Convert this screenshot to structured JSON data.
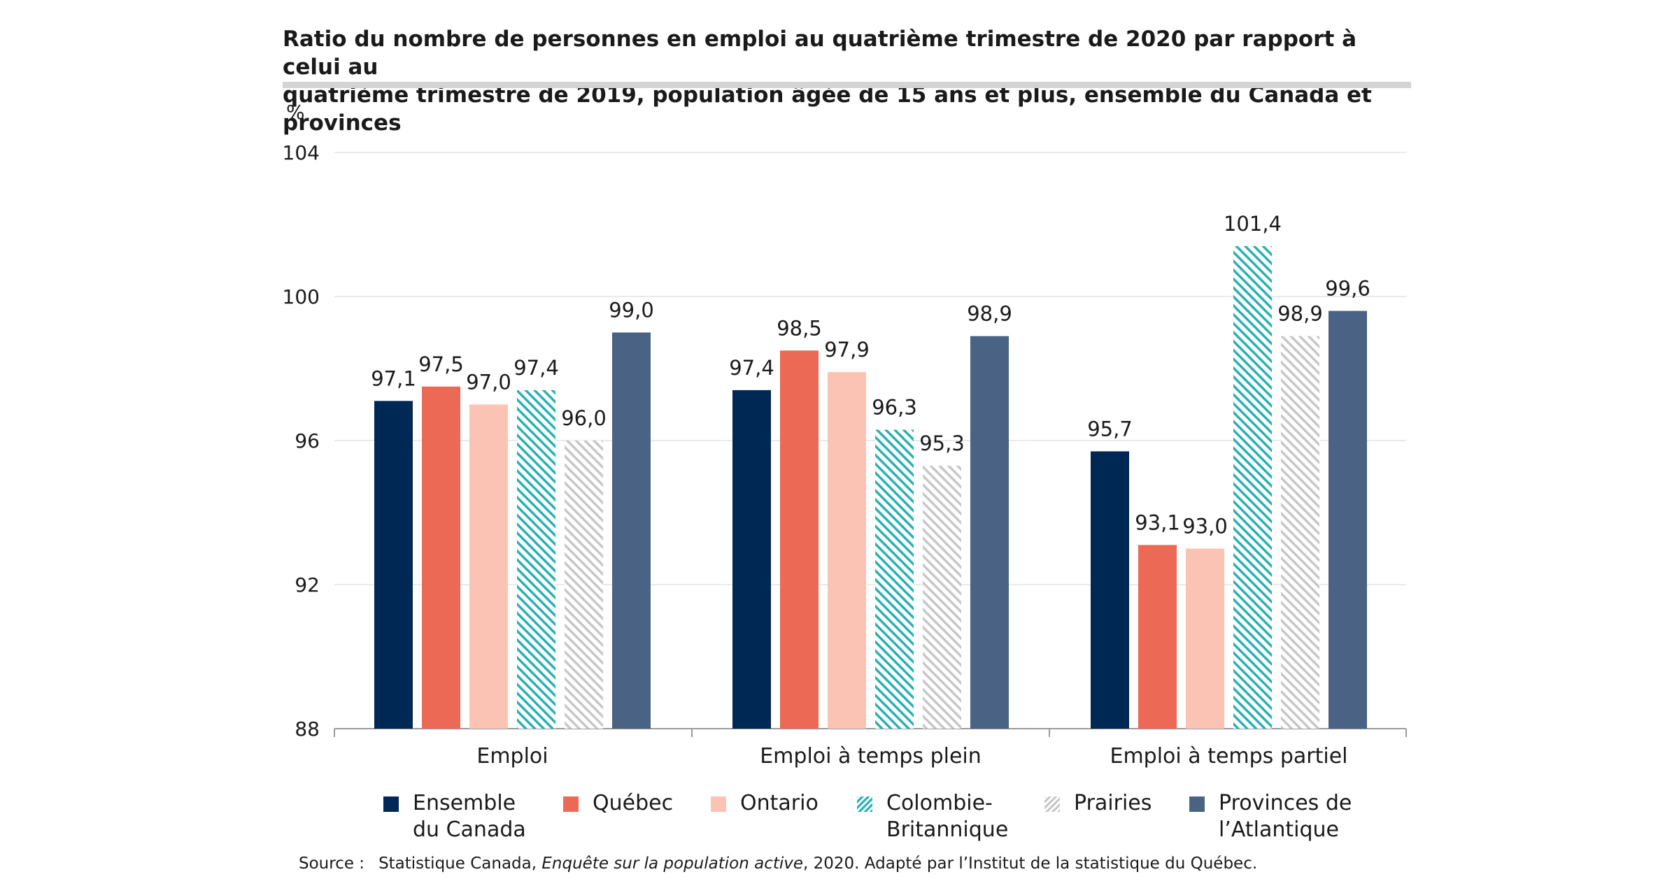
{
  "chart_data": {
    "type": "bar",
    "title_lines": [
      "Ratio du nombre de personnes en emploi au quatrième trimestre de 2020 par rapport à celui au",
      "quatrième trimestre de 2019, population âgée de 15 ans et plus, ensemble du Canada et provinces"
    ],
    "ylabel": "%",
    "xlabel": "",
    "ylim": [
      88,
      104
    ],
    "yticks": [
      88,
      92,
      96,
      100,
      104
    ],
    "grid": true,
    "legend_position": "bottom",
    "categories": [
      "Emploi",
      "Emploi à temps plein",
      "Emploi à temps partiel"
    ],
    "series": [
      {
        "name": "Ensemble\ndu Canada",
        "color": "#002855",
        "pattern": "solid",
        "values": [
          97.1,
          97.4,
          95.7
        ],
        "labels": [
          "97,1",
          "97,4",
          "95,7"
        ]
      },
      {
        "name": "Québec",
        "color": "#ec6955",
        "pattern": "solid",
        "values": [
          97.5,
          98.5,
          93.1
        ],
        "labels": [
          "97,5",
          "98,5",
          "93,1"
        ]
      },
      {
        "name": "Ontario",
        "color": "#fbc3b4",
        "pattern": "solid",
        "values": [
          97.0,
          97.9,
          93.0
        ],
        "labels": [
          "97,0",
          "97,9",
          "93,0"
        ]
      },
      {
        "name": "Colombie-\nBritannique",
        "color": "#2ab0b4",
        "pattern": "hatch",
        "values": [
          97.4,
          96.3,
          101.4
        ],
        "labels": [
          "97,4",
          "96,3",
          "101,4"
        ]
      },
      {
        "name": "Prairies",
        "color": "#c7c7c7",
        "pattern": "hatch",
        "values": [
          96.0,
          95.3,
          98.9
        ],
        "labels": [
          "96,0",
          "95,3",
          "98,9"
        ]
      },
      {
        "name": "Provinces de\nl’Atlantique",
        "color": "#4a6283",
        "pattern": "solid",
        "values": [
          99.0,
          98.9,
          99.6
        ],
        "labels": [
          "99,0",
          "98,9",
          "99,6"
        ]
      }
    ]
  },
  "source": {
    "prefix": "Source :",
    "text_before": "Statistique Canada, ",
    "italic": "Enquête sur la population active",
    "text_after": ", 2020. Adapté par l’Institut de la statistique du Québec."
  }
}
